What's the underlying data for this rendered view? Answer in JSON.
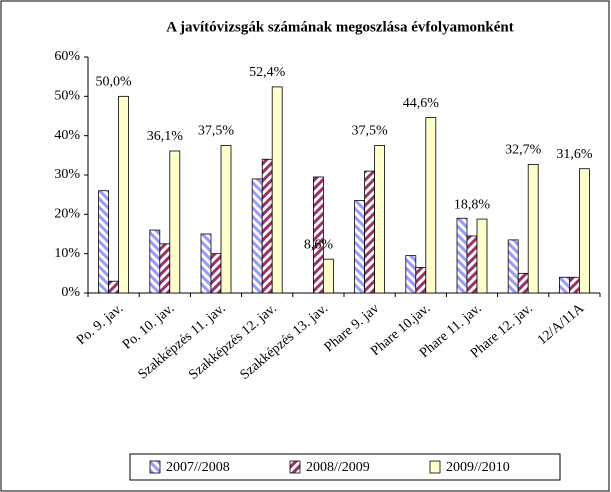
{
  "chart_data": {
    "type": "bar",
    "title": "A javítóvizsgák számának megoszlása évfolyamonként",
    "categories": [
      "Po. 9. jav.",
      "Po. 10. jav.",
      "Szakképzés 11. jav.",
      "Szakképzés 12. jav.",
      "Szakképzés 13. jav.",
      "Phare 9. jav",
      "Phare 10.jav.",
      "Phare 11. jav.",
      "Phare 12. jav.",
      "12/A/11A"
    ],
    "series": [
      {
        "name": "2007//2008",
        "color": "#9999ff",
        "hatch": true,
        "values": [
          26,
          16,
          15,
          29,
          0,
          23.5,
          9.5,
          19,
          13.5,
          4
        ]
      },
      {
        "name": "2008//2009",
        "color": "#993366",
        "hatch": true,
        "values": [
          3,
          12.5,
          10,
          34,
          29.5,
          31,
          6.5,
          14.5,
          5,
          4
        ]
      },
      {
        "name": "2009//2010",
        "color": "#ffffcc",
        "hatch": false,
        "values": [
          50,
          36.1,
          37.5,
          52.4,
          8.6,
          37.5,
          44.6,
          18.8,
          32.7,
          31.6
        ],
        "value_labels": [
          "50,0%",
          "36,1%",
          "37,5%",
          "52,4%",
          "8,6%",
          "37,5%",
          "44,6%",
          "18,8%",
          "32,7%",
          "31,6%"
        ]
      }
    ],
    "ylim": [
      0,
      60
    ],
    "yticks": [
      {
        "value": 0,
        "label": "0%"
      },
      {
        "value": 10,
        "label": "10%"
      },
      {
        "value": 20,
        "label": "20%"
      },
      {
        "value": 30,
        "label": "30%"
      },
      {
        "value": 40,
        "label": "40%"
      },
      {
        "value": 50,
        "label": "50%"
      },
      {
        "value": 60,
        "label": "60%"
      }
    ],
    "legend": "bottom"
  }
}
